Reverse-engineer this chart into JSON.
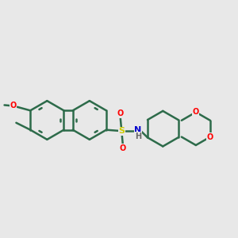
{
  "bg_color": "#e8e8e8",
  "bond_color": "#2d6b4a",
  "bond_width": 1.8,
  "atom_colors": {
    "O": "#ff0000",
    "N": "#0000cc",
    "S": "#cccc00",
    "H": "#888888",
    "C": "#2d6b4a"
  },
  "figsize": [
    3.0,
    3.0
  ],
  "dpi": 100
}
